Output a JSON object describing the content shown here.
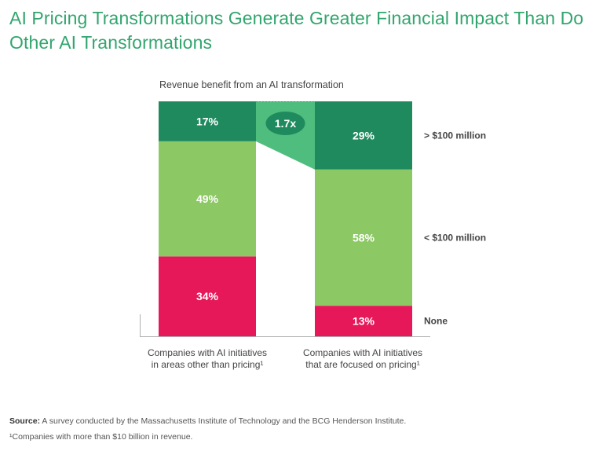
{
  "title": "AI Pricing Transformations Generate Greater Financial Impact Than Do Other AI Transformations",
  "colors": {
    "title": "#32a56e",
    "none": "#e6185a",
    "under100": "#8cc864",
    "over100": "#1f8a5e",
    "connector": "#4ebd7e",
    "badge": "#1f8a5e"
  },
  "chart_data": {
    "type": "bar",
    "stacked": true,
    "title": "Revenue benefit from an AI transformation",
    "categories": [
      "Companies with AI initiatives in areas other than pricing¹",
      "Companies with AI initiatives that are focused on pricing¹"
    ],
    "category_lines": [
      [
        "Companies with AI initiatives",
        "in areas other than pricing¹"
      ],
      [
        "Companies with AI initiatives",
        "that are focused on pricing¹"
      ]
    ],
    "series": [
      {
        "name": "None",
        "values": [
          34,
          13
        ],
        "labels": [
          "34%",
          "13%"
        ]
      },
      {
        "name": "< $100 million",
        "values": [
          49,
          58
        ],
        "labels": [
          "49%",
          "58%"
        ]
      },
      {
        "name": "> $100 million",
        "values": [
          17,
          29
        ],
        "labels": [
          "17%",
          "29%"
        ]
      }
    ],
    "ylim": [
      0,
      100
    ],
    "grid": false,
    "legend": "right",
    "annotation": "1.7x"
  },
  "source_label": "Source:",
  "source_text": " A survey conducted by the Massachusetts Institute of Technology and the BCG Henderson Institute.",
  "footnote": "¹Companies with more than $10 billion in revenue."
}
